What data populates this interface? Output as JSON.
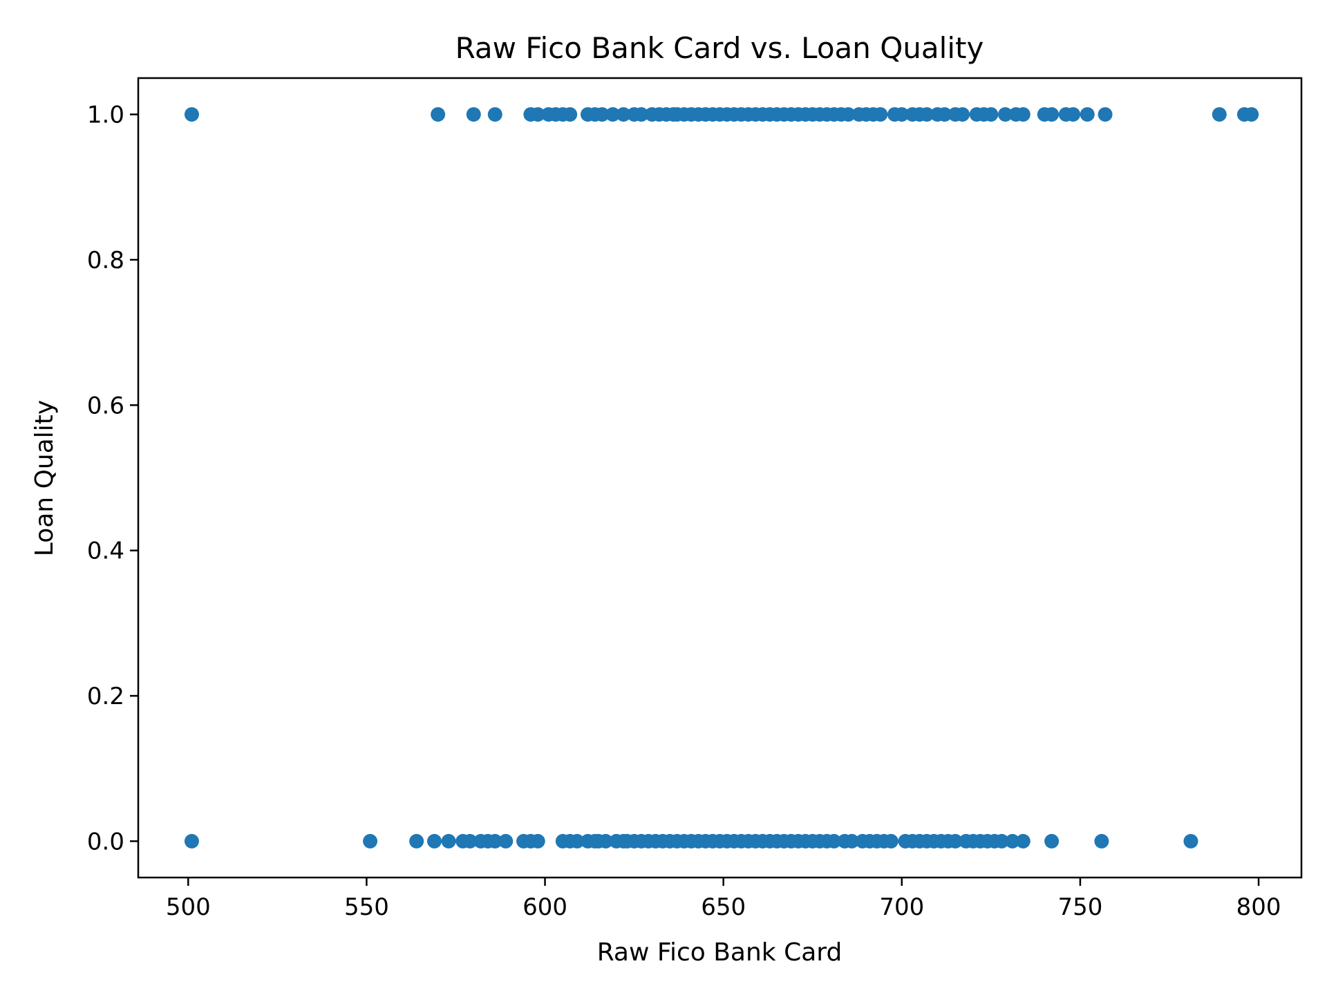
{
  "chart_data": {
    "type": "scatter",
    "title": "Raw Fico Bank Card vs. Loan Quality",
    "xlabel": "Raw Fico Bank Card",
    "ylabel": "Loan Quality",
    "xlim": [
      486,
      812
    ],
    "ylim": [
      -0.05,
      1.05
    ],
    "xticks": [
      500,
      550,
      600,
      650,
      700,
      750,
      800
    ],
    "xtick_labels": [
      "500",
      "550",
      "600",
      "650",
      "700",
      "750",
      "800"
    ],
    "yticks": [
      0.0,
      0.2,
      0.4,
      0.6,
      0.8,
      1.0
    ],
    "ytick_labels": [
      "0.0",
      "0.2",
      "0.4",
      "0.6",
      "0.8",
      "1.0"
    ],
    "grid": false,
    "marker_color": "#1f77b4",
    "series": [
      {
        "y": 1,
        "x": [
          501,
          570,
          580,
          586,
          596,
          598,
          601,
          603,
          605,
          607,
          612,
          614,
          616,
          619,
          622,
          625,
          627,
          630,
          632,
          634,
          636,
          637,
          639,
          641,
          643,
          645,
          647,
          649,
          651,
          653,
          655,
          657,
          659,
          661,
          663,
          665,
          667,
          669,
          671,
          673,
          675,
          677,
          679,
          681,
          683,
          685,
          688,
          690,
          692,
          694,
          698,
          700,
          703,
          705,
          707,
          710,
          712,
          715,
          717,
          721,
          723,
          725,
          729,
          732,
          734,
          740,
          742,
          746,
          748,
          752,
          757,
          789,
          796,
          798
        ]
      },
      {
        "y": 0,
        "x": [
          501,
          551,
          564,
          569,
          573,
          577,
          579,
          582,
          584,
          586,
          589,
          594,
          596,
          598,
          605,
          607,
          609,
          612,
          614,
          615,
          617,
          620,
          622,
          623,
          625,
          627,
          629,
          631,
          633,
          635,
          637,
          639,
          641,
          643,
          645,
          647,
          649,
          651,
          653,
          655,
          657,
          659,
          661,
          663,
          665,
          667,
          669,
          671,
          673,
          675,
          677,
          679,
          681,
          684,
          686,
          689,
          691,
          693,
          695,
          697,
          701,
          703,
          705,
          707,
          709,
          711,
          713,
          715,
          718,
          720,
          722,
          724,
          726,
          728,
          731,
          734,
          742,
          756,
          781
        ]
      }
    ]
  }
}
